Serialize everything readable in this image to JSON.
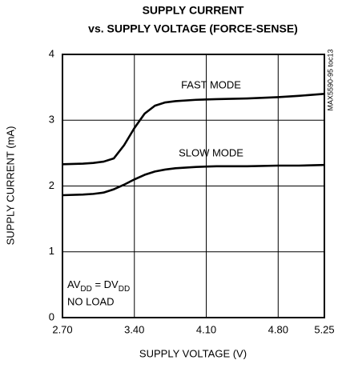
{
  "chart_data": {
    "type": "line",
    "title": "SUPPLY CURRENT",
    "subtitle": "vs. SUPPLY VOLTAGE (FORCE-SENSE)",
    "x_label": "SUPPLY VOLTAGE (V)",
    "y_label": "SUPPLY CURRENT (mA)",
    "side_note": "MAX5590-95 toc13",
    "condition": [
      {
        "text": "AV"
      },
      {
        "text": "DD",
        "sub": true
      },
      {
        "text": " = DV"
      },
      {
        "text": "DD",
        "sub": true
      }
    ],
    "condition_note": "NO LOAD",
    "x": [
      2.7,
      2.9,
      3.0,
      3.1,
      3.2,
      3.3,
      3.4,
      3.5,
      3.6,
      3.7,
      3.8,
      4.0,
      4.2,
      4.5,
      4.8,
      5.0,
      5.25
    ],
    "series": [
      {
        "name": "FAST MODE",
        "color": "#000000",
        "values": [
          2.33,
          2.34,
          2.35,
          2.37,
          2.42,
          2.62,
          2.88,
          3.1,
          3.22,
          3.27,
          3.29,
          3.31,
          3.32,
          3.33,
          3.35,
          3.37,
          3.4
        ]
      },
      {
        "name": "SLOW MODE",
        "color": "#000000",
        "values": [
          1.86,
          1.87,
          1.88,
          1.9,
          1.95,
          2.02,
          2.1,
          2.17,
          2.22,
          2.25,
          2.27,
          2.29,
          2.3,
          2.3,
          2.31,
          2.31,
          2.32
        ]
      }
    ],
    "xlim": [
      2.7,
      5.25
    ],
    "xticks": [
      {
        "value": 2.7,
        "label": "2.70"
      },
      {
        "value": 3.4,
        "label": "3.40"
      },
      {
        "value": 4.1,
        "label": "4.10"
      },
      {
        "value": 4.8,
        "label": "4.80"
      },
      5.25
    ],
    "ylim": [
      0,
      4
    ],
    "yticks": [
      0,
      1,
      2,
      3,
      4
    ],
    "grid": true
  }
}
